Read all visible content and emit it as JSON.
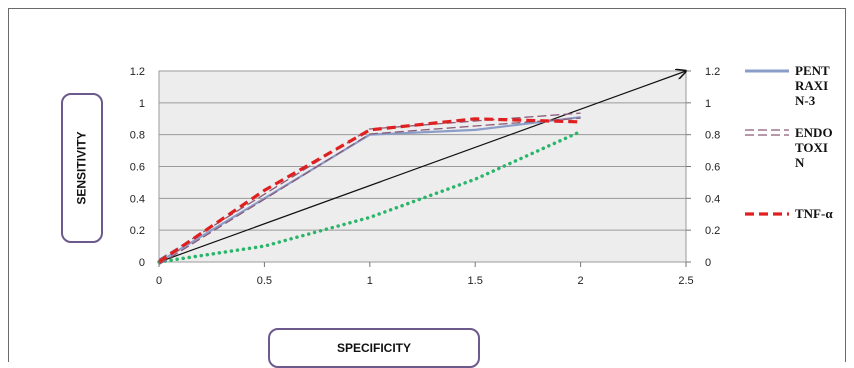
{
  "chart_data": {
    "type": "line",
    "title": "",
    "xlabel": "SPECIFICITY",
    "ylabel": "SENSITIVITY",
    "xlim": [
      0,
      2.5
    ],
    "ylim": [
      0,
      1.2
    ],
    "x_ticks": [
      "0",
      "0.5",
      "1",
      "1.5",
      "2",
      "2.5"
    ],
    "y_ticks": [
      "0",
      "0.2",
      "0.4",
      "0.6",
      "0.8",
      "1",
      "1.2"
    ],
    "y2_ticks": [
      "0",
      "0.2",
      "0.4",
      "0.6",
      "0.8",
      "1",
      "1.2"
    ],
    "grid": true,
    "legend_position": "right",
    "series": [
      {
        "name": "PENTRAXIN-3",
        "legend_lines": [
          "PENT",
          "RAXI",
          "N-3"
        ],
        "color": "#8a9dc8",
        "style": "solid",
        "x": [
          0,
          1,
          1.5,
          2
        ],
        "y": [
          0,
          0.8,
          0.83,
          0.91
        ]
      },
      {
        "name": "ENDOTOXIN",
        "legend_lines": [
          "ENDO",
          "TOXI",
          "N"
        ],
        "color": "#8a5a78",
        "style": "double-dashed",
        "x": [
          0,
          1,
          1.5,
          2
        ],
        "y": [
          0,
          0.82,
          0.87,
          0.92
        ]
      },
      {
        "name": "TNF-α",
        "legend_lines": [
          "TNF-α"
        ],
        "color": "#e02020",
        "style": "dashed",
        "x": [
          0,
          0.5,
          1,
          1.5,
          2
        ],
        "y": [
          0,
          0.45,
          0.83,
          0.9,
          0.88
        ]
      },
      {
        "name": "",
        "color": "#2ab56a",
        "style": "dotted",
        "x": [
          0,
          0.5,
          1,
          1.5,
          2
        ],
        "y": [
          0,
          0.1,
          0.28,
          0.52,
          0.82
        ]
      },
      {
        "name": "",
        "color": "#111111",
        "style": "arrow",
        "x": [
          0,
          2.5
        ],
        "y": [
          0,
          1.2
        ]
      }
    ]
  }
}
